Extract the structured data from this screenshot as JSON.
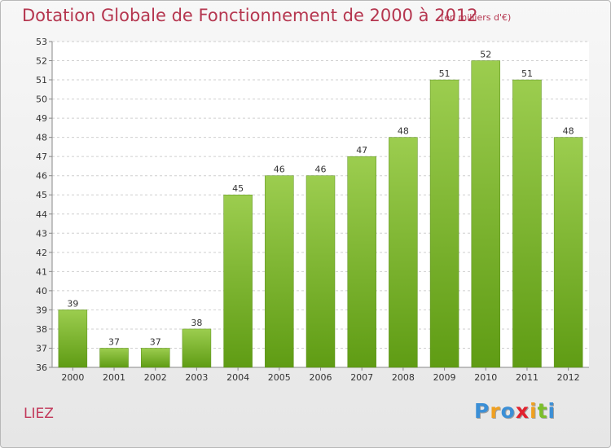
{
  "header": {
    "title": "Dotation Globale de Fonctionnement de 2000 à 2012",
    "unit": "(en milliers d'€)"
  },
  "footer": {
    "commune": "LIEZ",
    "logo_letters": [
      {
        "ch": "P",
        "color": "#3b8fd6"
      },
      {
        "ch": "r",
        "color": "#f0a020"
      },
      {
        "ch": "o",
        "color": "#3b8fd6"
      },
      {
        "ch": "x",
        "color": "#e2222e"
      },
      {
        "ch": "i",
        "color": "#f0a020"
      },
      {
        "ch": "t",
        "color": "#7bbf2a"
      },
      {
        "ch": "i",
        "color": "#3b8fd6"
      }
    ]
  },
  "colors": {
    "bar_top": "#9ccd4f",
    "bar_bottom": "#5f9c14",
    "title": "#b5364f",
    "grid": "#cfcfcf"
  },
  "chart_data": {
    "type": "bar",
    "title": "Dotation Globale de Fonctionnement de 2000 à 2012",
    "subtitle": "(en milliers d'€)",
    "xlabel": "",
    "ylabel": "",
    "categories": [
      "2000",
      "2001",
      "2002",
      "2003",
      "2004",
      "2005",
      "2006",
      "2007",
      "2008",
      "2009",
      "2010",
      "2011",
      "2012"
    ],
    "values": [
      39,
      37,
      37,
      38,
      45,
      46,
      46,
      47,
      48,
      51,
      52,
      51,
      48
    ],
    "ylim": [
      36,
      53
    ],
    "yticks": [
      36,
      37,
      38,
      39,
      40,
      41,
      42,
      43,
      44,
      45,
      46,
      47,
      48,
      49,
      50,
      51,
      52,
      53
    ],
    "grid": true,
    "legend": "none"
  }
}
